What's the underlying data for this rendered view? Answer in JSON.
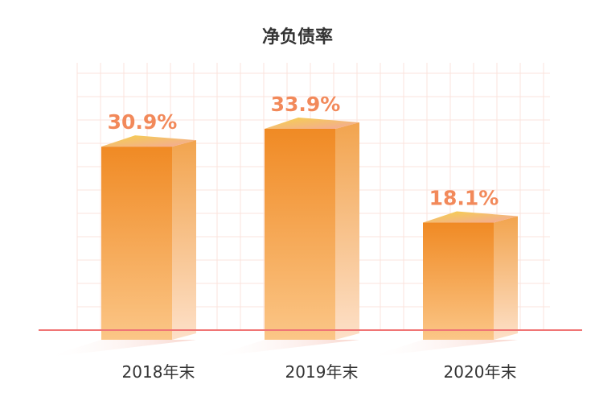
{
  "title": "净负债率",
  "colors": {
    "accent": "#f08a33",
    "label": "#f2895a",
    "baseline": "#f07575",
    "grid": "#fbe3dc",
    "axis_text": "#333333"
  },
  "chart_data": {
    "type": "bar",
    "title": "净负债率",
    "categories": [
      "2018年末",
      "2019年末",
      "2020年末"
    ],
    "values": [
      30.9,
      33.9,
      18.1
    ],
    "labels": [
      "30.9%",
      "33.9%",
      "18.1%"
    ],
    "ylim": [
      0,
      40
    ],
    "grid": true,
    "legend": "none"
  }
}
